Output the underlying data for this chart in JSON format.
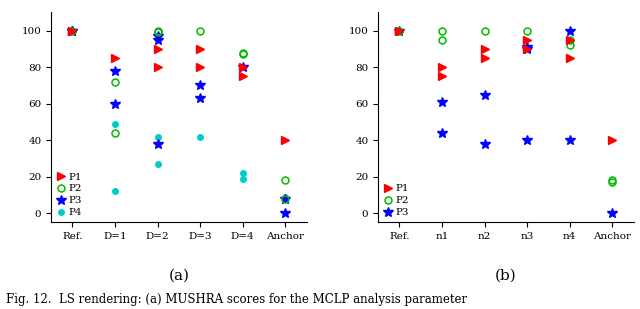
{
  "fig_width": 6.4,
  "fig_height": 3.09,
  "dpi": 100,
  "background_color": "#ffffff",
  "subplot_a": {
    "subplot_label": "(a)",
    "xlim": [
      -0.5,
      5.5
    ],
    "ylim": [
      -5,
      110
    ],
    "xtick_labels": [
      "Ref.",
      "D=1",
      "D=2",
      "D=3",
      "D=4",
      "Anchor"
    ],
    "yticks": [
      0,
      20,
      40,
      60,
      80,
      100
    ],
    "legend_labels": [
      "P1",
      "P2",
      "P3",
      "P4"
    ],
    "P1": {
      "color": "#ff0000",
      "data": [
        [
          0,
          100
        ],
        [
          0,
          100
        ],
        [
          1,
          85
        ],
        [
          2,
          90
        ],
        [
          2,
          80
        ],
        [
          3,
          90
        ],
        [
          3,
          80
        ],
        [
          4,
          80
        ],
        [
          4,
          75
        ],
        [
          5,
          40
        ]
      ]
    },
    "P2": {
      "color": "#00bb00",
      "data": [
        [
          0,
          100
        ],
        [
          1,
          72
        ],
        [
          1,
          44
        ],
        [
          2,
          100
        ],
        [
          2,
          99
        ],
        [
          3,
          100
        ],
        [
          4,
          88
        ],
        [
          4,
          87
        ],
        [
          5,
          18
        ],
        [
          5,
          8
        ]
      ]
    },
    "P3": {
      "color": "#0000ff",
      "data": [
        [
          0,
          100
        ],
        [
          0,
          100
        ],
        [
          1,
          78
        ],
        [
          1,
          60
        ],
        [
          2,
          97
        ],
        [
          2,
          95
        ],
        [
          2,
          38
        ],
        [
          3,
          70
        ],
        [
          3,
          63
        ],
        [
          4,
          80
        ],
        [
          5,
          0
        ],
        [
          5,
          8
        ]
      ]
    },
    "P4": {
      "color": "#00cccc",
      "data": [
        [
          0,
          100
        ],
        [
          1,
          49
        ],
        [
          1,
          12
        ],
        [
          2,
          42
        ],
        [
          2,
          27
        ],
        [
          3,
          42
        ],
        [
          4,
          22
        ],
        [
          4,
          19
        ],
        [
          5,
          9
        ],
        [
          5,
          8
        ]
      ]
    }
  },
  "subplot_b": {
    "subplot_label": "(b)",
    "xlim": [
      -0.5,
      5.5
    ],
    "ylim": [
      -5,
      110
    ],
    "xtick_labels": [
      "Ref.",
      "n1",
      "n2",
      "n3",
      "n4",
      "Anchor"
    ],
    "yticks": [
      0,
      20,
      40,
      60,
      80,
      100
    ],
    "legend_labels": [
      "P1",
      "P2",
      "P3"
    ],
    "P1": {
      "color": "#ff0000",
      "data": [
        [
          0,
          100
        ],
        [
          0,
          100
        ],
        [
          1,
          80
        ],
        [
          1,
          75
        ],
        [
          2,
          90
        ],
        [
          2,
          85
        ],
        [
          3,
          95
        ],
        [
          3,
          90
        ],
        [
          4,
          95
        ],
        [
          4,
          85
        ],
        [
          5,
          40
        ]
      ]
    },
    "P2": {
      "color": "#00bb00",
      "data": [
        [
          0,
          100
        ],
        [
          1,
          100
        ],
        [
          1,
          95
        ],
        [
          2,
          100
        ],
        [
          3,
          100
        ],
        [
          4,
          95
        ],
        [
          4,
          92
        ],
        [
          5,
          18
        ],
        [
          5,
          17
        ]
      ]
    },
    "P3": {
      "color": "#0000ff",
      "data": [
        [
          0,
          100
        ],
        [
          1,
          61
        ],
        [
          1,
          44
        ],
        [
          2,
          65
        ],
        [
          2,
          38
        ],
        [
          3,
          91
        ],
        [
          3,
          90
        ],
        [
          3,
          40
        ],
        [
          4,
          100
        ],
        [
          4,
          40
        ],
        [
          5,
          0
        ]
      ]
    }
  },
  "caption": "Fig. 12.  LS rendering: (a) MUSHRA scores for the MCLP analysis parameter",
  "caption_fontsize": 8.5
}
